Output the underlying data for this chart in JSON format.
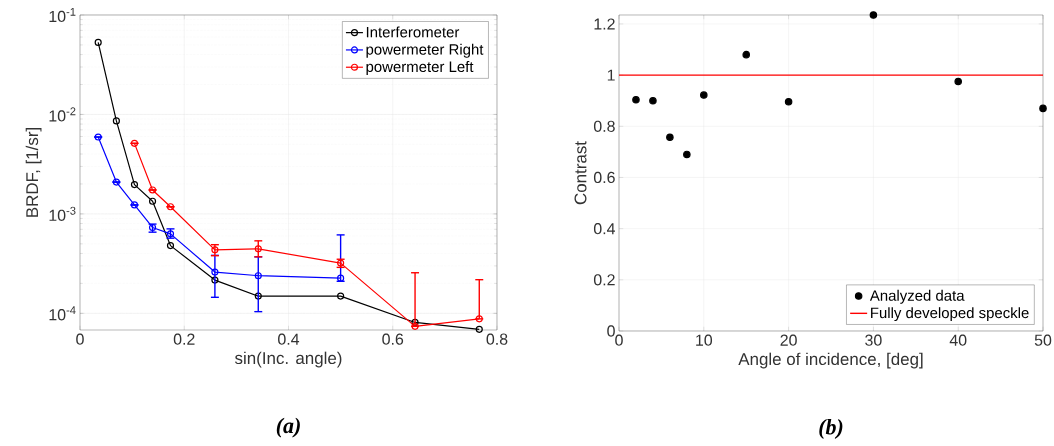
{
  "chart_data": [
    {
      "type": "line",
      "xlabel": "sin(Inc. angle)",
      "ylabel": "BRDF, [1/sr]",
      "log": "y",
      "grid": true,
      "legend": "top right",
      "marker": "circle",
      "xlim": [
        0,
        0.8
      ],
      "ylim": [
        6.8e-05,
        0.1
      ],
      "xticks": [
        0,
        0.2,
        0.4,
        0.6,
        0.8
      ],
      "yticks": [
        {
          "value": 0.0001,
          "label": "10$^{-4}$"
        },
        {
          "value": 0.001,
          "label": "10$^{-3}$"
        },
        {
          "value": 0.01,
          "label": "10$^{-2}$"
        },
        {
          "value": 0.1,
          "label": "10$^{-1}$"
        }
      ],
      "series": [
        {
          "name": "Interferometer",
          "color": "#000000",
          "x": [
            0.0349,
            0.0698,
            0.1045,
            0.1392,
            0.1736,
            0.2588,
            0.342,
            0.5,
            0.6428,
            0.766
          ],
          "values": [
            0.053,
            0.0086,
            0.00197,
            0.00134,
            0.00048,
            0.000216,
            0.000149,
            0.000149,
            8.1e-05,
            6.9e-05
          ]
        },
        {
          "name": "powermeter Right",
          "color": "#0000ff",
          "x": [
            0.0349,
            0.0698,
            0.1045,
            0.1392,
            0.1736,
            0.2588,
            0.342,
            0.5
          ],
          "values": [
            0.00593,
            0.00209,
            0.00123,
            0.00073,
            0.00063,
            0.00026,
            0.000239,
            0.000226
          ],
          "errors": [
            null,
            null,
            null,
            [
              0.000655,
              0.00079
            ],
            [
              0.00057,
              0.000707
            ],
            [
              0.000145,
              0.000383
            ],
            [
              0.000104,
              0.00037
            ],
            [
              0.00021,
              0.000615
            ]
          ]
        },
        {
          "name": "powermeter Left",
          "color": "#ff0000",
          "x": [
            0.1045,
            0.1392,
            0.1736,
            0.2588,
            0.342,
            0.5,
            0.6428,
            0.766
          ],
          "values": [
            0.00512,
            0.00174,
            0.00118,
            0.000435,
            0.000445,
            0.00032,
            7.4e-05,
            8.8e-05
          ],
          "errors": [
            null,
            null,
            null,
            [
              0.00038,
              0.00049
            ],
            [
              0.00037,
              0.000536
            ],
            [
              0.00029,
              0.00035
            ],
            [
              7.4e-05,
              0.000256
            ],
            [
              8.8e-05,
              0.000218
            ]
          ]
        }
      ],
      "annotations": [
        "(a)"
      ]
    },
    {
      "type": "scatter",
      "xlabel": "Angle of incidence, [deg]",
      "ylabel": "Contrast",
      "grid": true,
      "legend": "bottom right",
      "marker": "circle",
      "xlim": [
        0,
        50
      ],
      "ylim": [
        0,
        1.235
      ],
      "xticks": [
        0,
        10,
        20,
        30,
        40,
        50
      ],
      "yticks": [
        0,
        0.2,
        0.4,
        0.6,
        0.8,
        1,
        1.2
      ],
      "series": [
        {
          "name": "Analyzed data",
          "color": "#000000",
          "x": [
            2,
            4,
            6,
            8,
            10,
            15,
            20,
            30,
            40,
            50
          ],
          "values": [
            0.904,
            0.9,
            0.757,
            0.69,
            0.922,
            1.08,
            0.896,
            1.235,
            0.975,
            0.87
          ]
        }
      ],
      "ref_lines": [
        {
          "axis": "y",
          "value": 1,
          "label": "Fully developed speckle",
          "color": "#ff0000"
        }
      ],
      "annotations": [
        "(b)"
      ]
    }
  ]
}
